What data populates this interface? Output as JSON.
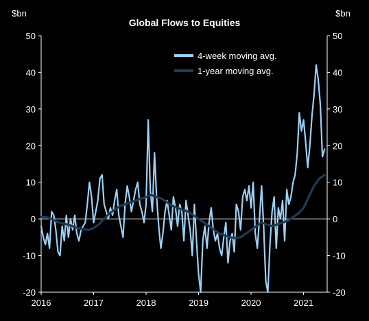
{
  "chart_data": {
    "type": "line",
    "title": "Global Flows to Equities",
    "y_unit_left": "$bn",
    "y_unit_right": "$bn",
    "ylim": [
      -20,
      50
    ],
    "y_ticks": [
      -20,
      -10,
      0,
      10,
      20,
      30,
      40,
      50
    ],
    "x_ticks": [
      "2016",
      "2017",
      "2018",
      "2019",
      "2020",
      "2021"
    ],
    "x_range": [
      2016.0,
      2021.45
    ],
    "grid": false,
    "legend_position": "top-right",
    "colors": {
      "background": "#000000",
      "text": "#ffffff",
      "zero_line": "#cfcfcf",
      "series_4wk": "#9dd0f5",
      "series_1yr": "#1f3a54"
    },
    "series": [
      {
        "name": "4-week moving avg.",
        "x": [
          2016.0,
          2016.04,
          2016.08,
          2016.12,
          2016.16,
          2016.2,
          2016.24,
          2016.28,
          2016.32,
          2016.36,
          2016.4,
          2016.44,
          2016.48,
          2016.52,
          2016.56,
          2016.6,
          2016.64,
          2016.68,
          2016.72,
          2016.76,
          2016.8,
          2016.84,
          2016.88,
          2016.92,
          2016.96,
          2017.0,
          2017.04,
          2017.08,
          2017.12,
          2017.16,
          2017.2,
          2017.24,
          2017.28,
          2017.32,
          2017.36,
          2017.4,
          2017.44,
          2017.48,
          2017.52,
          2017.56,
          2017.6,
          2017.64,
          2017.68,
          2017.72,
          2017.76,
          2017.8,
          2017.84,
          2017.88,
          2017.92,
          2017.96,
          2018.0,
          2018.04,
          2018.08,
          2018.12,
          2018.16,
          2018.2,
          2018.24,
          2018.28,
          2018.32,
          2018.36,
          2018.4,
          2018.44,
          2018.48,
          2018.52,
          2018.56,
          2018.6,
          2018.64,
          2018.68,
          2018.72,
          2018.76,
          2018.8,
          2018.84,
          2018.88,
          2018.92,
          2018.96,
          2019.0,
          2019.04,
          2019.08,
          2019.12,
          2019.16,
          2019.2,
          2019.24,
          2019.28,
          2019.32,
          2019.36,
          2019.4,
          2019.44,
          2019.48,
          2019.52,
          2019.56,
          2019.6,
          2019.64,
          2019.68,
          2019.72,
          2019.76,
          2019.8,
          2019.84,
          2019.88,
          2019.92,
          2019.96,
          2020.0,
          2020.04,
          2020.08,
          2020.12,
          2020.16,
          2020.2,
          2020.24,
          2020.28,
          2020.32,
          2020.36,
          2020.4,
          2020.44,
          2020.48,
          2020.52,
          2020.56,
          2020.6,
          2020.64,
          2020.68,
          2020.72,
          2020.76,
          2020.8,
          2020.84,
          2020.88,
          2020.92,
          2020.96,
          2021.0,
          2021.04,
          2021.08,
          2021.12,
          2021.16,
          2021.2,
          2021.24,
          2021.28,
          2021.32,
          2021.36,
          2021.4
        ],
        "values": [
          -2,
          -5,
          -7,
          -4,
          -8,
          2,
          1,
          -3,
          -9,
          -10,
          -2,
          -6,
          1,
          -5,
          0,
          -3,
          1,
          -4,
          -6,
          -3,
          -2,
          -1,
          4,
          10,
          6,
          -1,
          2,
          5,
          11,
          12,
          4,
          2,
          0,
          3,
          1,
          5,
          8,
          1,
          -2,
          -5,
          4,
          9,
          6,
          2,
          5,
          8,
          10,
          4,
          2,
          -1,
          4,
          27,
          8,
          2,
          18,
          6,
          -2,
          -8,
          -4,
          2,
          5,
          1,
          -3,
          6,
          3,
          -2,
          4,
          2,
          -6,
          5,
          1,
          -3,
          -10,
          4,
          -6,
          -15,
          -20,
          -6,
          -2,
          -8,
          -1,
          3,
          -3,
          -6,
          -4,
          -8,
          -10,
          -5,
          -1,
          -12,
          -6,
          -4,
          -9,
          4,
          2,
          -3,
          6,
          8,
          5,
          9,
          3,
          10,
          -4,
          -8,
          0,
          9,
          -2,
          -17,
          -20,
          -7,
          2,
          6,
          -8,
          3,
          0,
          5,
          -6,
          8,
          4,
          6,
          10,
          12,
          18,
          29,
          24,
          27,
          21,
          14,
          20,
          28,
          34,
          42,
          38,
          31,
          17,
          19
        ]
      },
      {
        "name": "1-year moving avg.",
        "x": [
          2016.0,
          2016.1,
          2016.2,
          2016.3,
          2016.4,
          2016.5,
          2016.6,
          2016.7,
          2016.8,
          2016.9,
          2017.0,
          2017.1,
          2017.2,
          2017.3,
          2017.4,
          2017.5,
          2017.6,
          2017.7,
          2017.8,
          2017.9,
          2018.0,
          2018.1,
          2018.2,
          2018.3,
          2018.4,
          2018.5,
          2018.6,
          2018.7,
          2018.8,
          2018.9,
          2019.0,
          2019.1,
          2019.2,
          2019.3,
          2019.4,
          2019.5,
          2019.6,
          2019.7,
          2019.8,
          2019.9,
          2020.0,
          2020.1,
          2020.2,
          2020.3,
          2020.4,
          2020.5,
          2020.6,
          2020.7,
          2020.8,
          2020.9,
          2021.0,
          2021.1,
          2021.2,
          2021.3,
          2021.4
        ],
        "values": [
          0.5,
          0.5,
          0,
          -0.8,
          -1.2,
          -1.5,
          -2.0,
          -2.5,
          -2.8,
          -3.0,
          -2.5,
          -1.5,
          0,
          1.5,
          2.5,
          3.5,
          4.0,
          4.5,
          5.0,
          5.5,
          6.0,
          6.5,
          6.0,
          5.5,
          4.5,
          3.5,
          3.0,
          2.5,
          2.0,
          1.0,
          0,
          -1.0,
          -2.0,
          -3.0,
          -4.0,
          -4.5,
          -5.0,
          -5.2,
          -5.0,
          -4.0,
          -3.0,
          -2.0,
          -1.0,
          -1.5,
          -2.0,
          -1.5,
          -1.0,
          -0.5,
          0.5,
          1.5,
          3.0,
          6.0,
          9.0,
          11.0,
          12.0
        ]
      }
    ]
  }
}
